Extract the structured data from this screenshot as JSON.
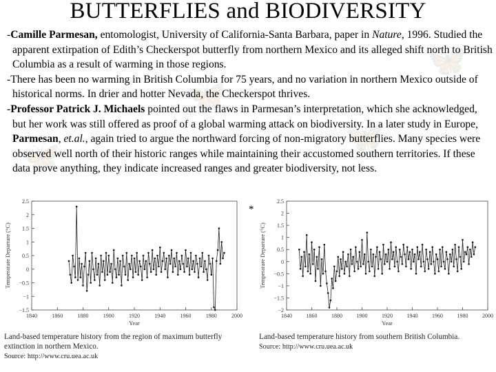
{
  "title": "BUTTERFLIES and BIODIVERSITY",
  "paragraphs": [
    {
      "segments": [
        {
          "text": "-",
          "style": "normal"
        },
        {
          "text": "Camille Parmesan,",
          "style": "bold"
        },
        {
          "text": " entomologist, University of California-Santa Barbara, paper in ",
          "style": "normal"
        },
        {
          "text": "Nature",
          "style": "italic"
        },
        {
          "text": ", 1996.  Studied the apparent extirpation of Edith’s Checkerspot butterfly from northern Mexico and its alleged shift north to British Columbia as a result of warming in those regions.",
          "style": "normal"
        }
      ]
    },
    {
      "segments": [
        {
          "text": "-There has been no warming in British Columbia for 75 years, and no variation in northern Mexico outside of historical norms.  In drier and hotter Nevada, the Checkerspot thrives.",
          "style": "normal"
        }
      ]
    },
    {
      "segments": [
        {
          "text": "-",
          "style": "normal"
        },
        {
          "text": "Professor Patrick J. Michaels",
          "style": "bold"
        },
        {
          "text": " pointed out the flaws in Parmesan’s interpretation, which she acknowledged, but her work was still offered as proof of a global warming attack on biodiversity.  In a later study in Europe, ",
          "style": "normal"
        },
        {
          "text": "Parmesan",
          "style": "bold"
        },
        {
          "text": ", ",
          "style": "normal"
        },
        {
          "text": "et.al.",
          "style": "italic"
        },
        {
          "text": ", again tried to argue the northward forcing of non-migratory butterflies.  Many species were observed well north of their historic ranges while maintaining their accustomed southern territories.  If these data prove anything, they indicate increased ranges and greater biodiversity, not less.",
          "style": "normal"
        }
      ]
    }
  ],
  "star": "*",
  "chart_data": [
    {
      "type": "line",
      "xlabel": "Year",
      "ylabel": "Temperature Departure (°C)",
      "xlim": [
        1840,
        2000
      ],
      "ylim": [
        -1.5,
        2.5
      ],
      "x_ticks": [
        "1840",
        "1860",
        "1880",
        "1900",
        "1920",
        "1940",
        "1960",
        "1980",
        "2000"
      ],
      "y_ticks": [
        "2.5",
        "2",
        "1.5",
        "1",
        "0.5",
        "0",
        "−0.5",
        "−1",
        "−1.5"
      ],
      "caption": "Land-based temperature history from the region of maximum butterfly extinction in northern Mexico.",
      "source_label": "Source:",
      "source": "http://www.cru.uea.ac.uk",
      "series": [
        {
          "x": [
            1869,
            1870,
            1871,
            1872,
            1873,
            1874,
            1875,
            1876,
            1877,
            1878,
            1879,
            1880,
            1881,
            1882,
            1883,
            1884,
            1885,
            1886,
            1887,
            1888,
            1889,
            1890,
            1891,
            1892,
            1893,
            1894,
            1895,
            1896,
            1897,
            1898,
            1899,
            1900,
            1901,
            1902,
            1903,
            1904,
            1905,
            1906,
            1907,
            1908,
            1909,
            1910,
            1911,
            1912,
            1913,
            1914,
            1915,
            1916,
            1917,
            1918,
            1919,
            1920,
            1921,
            1922,
            1923,
            1924,
            1925,
            1926,
            1927,
            1928,
            1929,
            1930,
            1931,
            1932,
            1933,
            1934,
            1935,
            1936,
            1937,
            1938,
            1939,
            1940,
            1941,
            1942,
            1943,
            1944,
            1945,
            1946,
            1947,
            1948,
            1949,
            1950,
            1951,
            1952,
            1953,
            1954,
            1955,
            1956,
            1957,
            1958,
            1959,
            1960,
            1961,
            1962,
            1963,
            1964,
            1965,
            1966,
            1967,
            1968,
            1969,
            1970,
            1971,
            1972,
            1973,
            1974,
            1975,
            1976,
            1977,
            1978,
            1979,
            1980,
            1981,
            1982,
            1983,
            1984,
            1985,
            1986,
            1987,
            1988,
            1989,
            1990
          ],
          "values": [
            0.3,
            -0.2,
            -0.5,
            0.5,
            0.1,
            -0.3,
            2.3,
            -0.4,
            0.4,
            -0.3,
            0.2,
            -0.6,
            0.1,
            0.6,
            -0.8,
            -0.2,
            0.3,
            -0.5,
            0.6,
            0.0,
            -0.4,
            0.4,
            -0.2,
            0.2,
            -0.6,
            0.5,
            -0.1,
            0.3,
            -0.4,
            0.6,
            -0.2,
            0.5,
            -0.1,
            0.2,
            -0.5,
            0.7,
            0.0,
            -0.3,
            0.4,
            -0.2,
            0.3,
            -0.6,
            0.5,
            0.1,
            -0.2,
            0.6,
            -0.4,
            0.2,
            0.0,
            0.5,
            -0.3,
            0.4,
            -0.1,
            0.6,
            -0.2,
            0.3,
            0.1,
            -0.4,
            0.5,
            0.0,
            0.3,
            -0.3,
            0.6,
            0.2,
            -0.1,
            0.7,
            0.0,
            0.4,
            -0.2,
            0.5,
            0.1,
            0.8,
            -0.1,
            0.3,
            0.6,
            0.0,
            0.4,
            -0.3,
            0.5,
            0.2,
            0.7,
            -0.1,
            0.4,
            0.1,
            0.6,
            -0.2,
            0.3,
            0.0,
            0.5,
            0.2,
            -0.1,
            0.7,
            0.1,
            0.4,
            -0.2,
            0.6,
            0.0,
            0.3,
            -0.1,
            0.5,
            0.2,
            -0.3,
            0.4,
            0.1,
            0.6,
            -0.1,
            0.3,
            0.0,
            -0.4,
            0.5,
            0.2,
            -0.2,
            0.4,
            -1.4,
            -1.5,
            0.3,
            0.7,
            1.5,
            0.2,
            1.0,
            0.4,
            0.6
          ]
        }
      ]
    },
    {
      "type": "line",
      "xlabel": "Year",
      "ylabel": "Temperature Departure (°C)",
      "xlim": [
        1840,
        2000
      ],
      "ylim": [
        -2.0,
        2.5
      ],
      "x_ticks": [
        "1840",
        "1860",
        "1880",
        "1900",
        "1920",
        "1940",
        "1960",
        "1980",
        "2000"
      ],
      "y_ticks": [
        "2.5",
        "2",
        "1.5",
        "1",
        "0.5",
        "0",
        "−0.5",
        "−1",
        "−1.5",
        "−2"
      ],
      "caption": "Land-based temperature history from southern British Columbia.",
      "source_label": "Source:",
      "source": "http://www.cru.uea.ac.uk",
      "series": [
        {
          "x": [
            1850,
            1851,
            1852,
            1853,
            1854,
            1855,
            1856,
            1857,
            1858,
            1859,
            1860,
            1861,
            1862,
            1863,
            1864,
            1865,
            1866,
            1867,
            1868,
            1869,
            1870,
            1871,
            1872,
            1873,
            1874,
            1875,
            1876,
            1877,
            1878,
            1879,
            1880,
            1881,
            1882,
            1883,
            1884,
            1885,
            1886,
            1887,
            1888,
            1889,
            1890,
            1891,
            1892,
            1893,
            1894,
            1895,
            1896,
            1897,
            1898,
            1899,
            1900,
            1901,
            1902,
            1903,
            1904,
            1905,
            1906,
            1907,
            1908,
            1909,
            1910,
            1911,
            1912,
            1913,
            1914,
            1915,
            1916,
            1917,
            1918,
            1919,
            1920,
            1921,
            1922,
            1923,
            1924,
            1925,
            1926,
            1927,
            1928,
            1929,
            1930,
            1931,
            1932,
            1933,
            1934,
            1935,
            1936,
            1937,
            1938,
            1939,
            1940,
            1941,
            1942,
            1943,
            1944,
            1945,
            1946,
            1947,
            1948,
            1949,
            1950,
            1951,
            1952,
            1953,
            1954,
            1955,
            1956,
            1957,
            1958,
            1959,
            1960,
            1961,
            1962,
            1963,
            1964,
            1965,
            1966,
            1967,
            1968,
            1969,
            1970,
            1971,
            1972,
            1973,
            1974,
            1975,
            1976,
            1977,
            1978,
            1979,
            1980,
            1981,
            1982,
            1983,
            1984,
            1985,
            1986,
            1987,
            1988,
            1989,
            1990
          ],
          "values": [
            0.5,
            -0.3,
            0.2,
            -0.6,
            0.4,
            -0.2,
            1.1,
            -0.4,
            0.3,
            -0.5,
            0.8,
            -0.1,
            0.5,
            -0.8,
            0.2,
            -0.3,
            0.6,
            -1.0,
            0.1,
            -0.5,
            0.7,
            -0.4,
            -0.9,
            -1.3,
            -1.9,
            -1.6,
            -0.7,
            -1.1,
            -0.2,
            -0.8,
            -0.4,
            0.2,
            -0.6,
            0.1,
            -0.3,
            0.4,
            -0.5,
            0.0,
            -0.2,
            0.3,
            -0.6,
            0.5,
            -0.1,
            0.2,
            -0.4,
            0.6,
            0.0,
            -0.3,
            0.4,
            -0.2,
            0.9,
            -0.1,
            0.3,
            -0.5,
            1.2,
            0.0,
            -0.4,
            0.5,
            -0.2,
            0.3,
            -0.6,
            0.2,
            0.6,
            -0.3,
            0.4,
            0.1,
            -0.5,
            0.7,
            -0.1,
            0.3,
            0.0,
            0.5,
            -0.3,
            0.8,
            0.1,
            0.4,
            -0.2,
            0.6,
            0.0,
            -0.4,
            0.5,
            0.2,
            -0.1,
            0.7,
            0.3,
            -0.2,
            0.6,
            0.1,
            0.4,
            -0.3,
            0.5,
            0.0,
            0.3,
            -0.5,
            0.6,
            0.1,
            0.4,
            -0.2,
            0.7,
            0.0,
            -0.4,
            0.5,
            0.1,
            -0.3,
            0.4,
            -0.1,
            0.6,
            0.0,
            -0.5,
            0.3,
            0.1,
            -0.4,
            0.5,
            -0.2,
            0.6,
            0.0,
            -0.3,
            0.4,
            0.1,
            -0.5,
            0.3,
            0.0,
            0.5,
            -0.2,
            0.7,
            0.1,
            -0.4,
            0.6,
            0.2,
            -0.3,
            0.9,
            0.0,
            0.4,
            0.3,
            0.6,
            -0.1,
            0.5,
            0.2,
            0.8,
            0.3,
            0.6
          ]
        }
      ]
    }
  ]
}
